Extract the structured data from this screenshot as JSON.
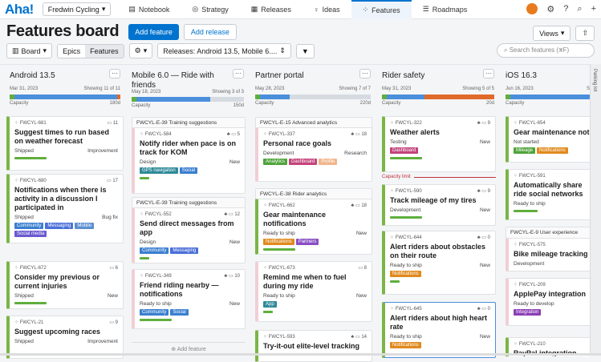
{
  "nav": {
    "logo": "Aha!",
    "workspace": "Fredwin Cycling",
    "tabs": [
      "Notebook",
      "Strategy",
      "Releases",
      "Ideas",
      "Features",
      "Roadmaps"
    ]
  },
  "header": {
    "title": "Features board",
    "add_feature": "Add feature",
    "add_release": "Add release",
    "views": "Views"
  },
  "toolbar": {
    "board": "Board",
    "epics": "Epics",
    "features": "Features",
    "releases_filter": "Releases: Android 13.5, Mobile 6....",
    "search_placeholder": "Search features (⌘F)"
  },
  "parking": "Parking lot",
  "columns": [
    {
      "title": "Android 13.5",
      "date": "Mar 31, 2023",
      "showing": "Showing 11 of 11",
      "capacity": "Capacity",
      "cap_val": "180d"
    },
    {
      "title": "Mobile 6.0 — Ride with friends",
      "date": "May 18, 2023",
      "showing": "Showing 3 of 3",
      "capacity": "Capacity",
      "cap_val": "150d"
    },
    {
      "title": "Partner portal",
      "date": "May 28, 2023",
      "showing": "Showing 7 of 7",
      "capacity": "Capacity",
      "cap_val": "220d"
    },
    {
      "title": "Rider safety",
      "date": "May 31, 2023",
      "showing": "Showing 5 of 5",
      "capacity": "Capacity",
      "cap_val": "20d"
    },
    {
      "title": "iOS 16.3",
      "date": "Jun 16, 2023",
      "showing": "S",
      "capacity": "Capacity",
      "cap_val": ""
    }
  ],
  "epics": {
    "c1a": "FWCYL-E-39 Training suggestions",
    "c1b": "FWCYL-E-39 Training suggestions",
    "c2a": "FWCYL-E-15 Advanced analytics",
    "c2b": "FWCYL-E-38 Rider analytics",
    "c4": "FWCYL-E-9 User experience"
  },
  "limit": "Capacity limit",
  "add_feature_link": "⊕ Add feature",
  "cards": {
    "a1": {
      "id": "FWCYL-681",
      "cnt": "11",
      "name": "Suggest times to run based on weather forecast",
      "status": "Shipped",
      "type": "Improvement"
    },
    "a2": {
      "id": "FWCYL-680",
      "cnt": "17",
      "name": "Notifications when there is activity in a discussion I participated in",
      "status": "Shipped",
      "type": "Bug fix",
      "tags": [
        "Community",
        "Messaging",
        "Mobile",
        "Social media"
      ]
    },
    "a3": {
      "id": "FWCYL-672",
      "cnt": "6",
      "name": "Consider my previous or current injuries",
      "status": "Shipped",
      "type": "New"
    },
    "a4": {
      "id": "FWCYL-21",
      "cnt": "9",
      "name": "Suggest upcoming races",
      "status": "Shipped",
      "type": "Improvement"
    },
    "b1": {
      "id": "FWCYL-584",
      "cnt": "5",
      "name": "Notify rider when pace is on track for KOM",
      "status": "Design",
      "type": "New",
      "tags": [
        "GPS navigation",
        "Social"
      ]
    },
    "b2": {
      "id": "FWCYL-552",
      "cnt": "12",
      "name": "Send direct messages from app",
      "status": "Design",
      "type": "New",
      "tags": [
        "Community",
        "Messaging"
      ]
    },
    "b3": {
      "id": "FWCYL-349",
      "cnt": "10",
      "name": "Friend riding nearby — notifications",
      "status": "Ready to ship",
      "type": "New",
      "tags": [
        "Community",
        "Social"
      ]
    },
    "p1": {
      "id": "FWCYL-337",
      "cnt": "18",
      "name": "Personal race goals",
      "status": "Development",
      "type": "Research",
      "tags": [
        "Analytics",
        "Dashboard",
        "Profile"
      ]
    },
    "p2": {
      "id": "FWCYL-662",
      "cnt": "18",
      "name": "Gear maintenance notifications",
      "status": "Ready to ship",
      "type": "New",
      "tags": [
        "Notifications",
        "Partners"
      ]
    },
    "p3": {
      "id": "FWCYL-673",
      "cnt": "8",
      "name": "Remind me when to fuel during my ride",
      "status": "Ready to ship",
      "type": "New",
      "tags": [
        "App"
      ]
    },
    "p4": {
      "id": "FWCYL-593",
      "cnt": "14",
      "name": "Try-it-out elite-level tracking"
    },
    "r1": {
      "id": "FWCYL-322",
      "cnt": "9",
      "name": "Weather alerts",
      "status": "Testing",
      "type": "New",
      "tags": [
        "Dashboard"
      ]
    },
    "r2": {
      "id": "FWCYL-590",
      "cnt": "9",
      "name": "Track mileage of my tires",
      "status": "Development",
      "type": "New"
    },
    "r3": {
      "id": "FWCYL-644",
      "cnt": "0",
      "name": "Alert riders about obstacles on their route",
      "status": "Ready to ship",
      "type": "New",
      "tags": [
        "Notifications"
      ]
    },
    "r4": {
      "id": "FWCYL-645",
      "cnt": "0",
      "name": "Alert riders about high heart rate",
      "status": "Ready to ship",
      "type": "New",
      "tags": [
        "Notifications"
      ]
    },
    "i1": {
      "id": "FWCYL-654",
      "name": "Gear maintenance notifi",
      "status": "Not started",
      "tags": [
        "Mileage",
        "Notifications"
      ]
    },
    "i2": {
      "id": "FWCYL-591",
      "name": "Automatically share ride social networks",
      "status": "Ready to ship"
    },
    "i3": {
      "id": "FWCYL-575",
      "name": "Bike mileage tracking",
      "status": "Development"
    },
    "i4": {
      "id": "FWCYL-209",
      "name": "ApplePay integration",
      "status": "Ready to develop",
      "tags": [
        "Integration"
      ]
    },
    "i5": {
      "id": "FWCYL-210",
      "name": "PayPal integration"
    }
  }
}
